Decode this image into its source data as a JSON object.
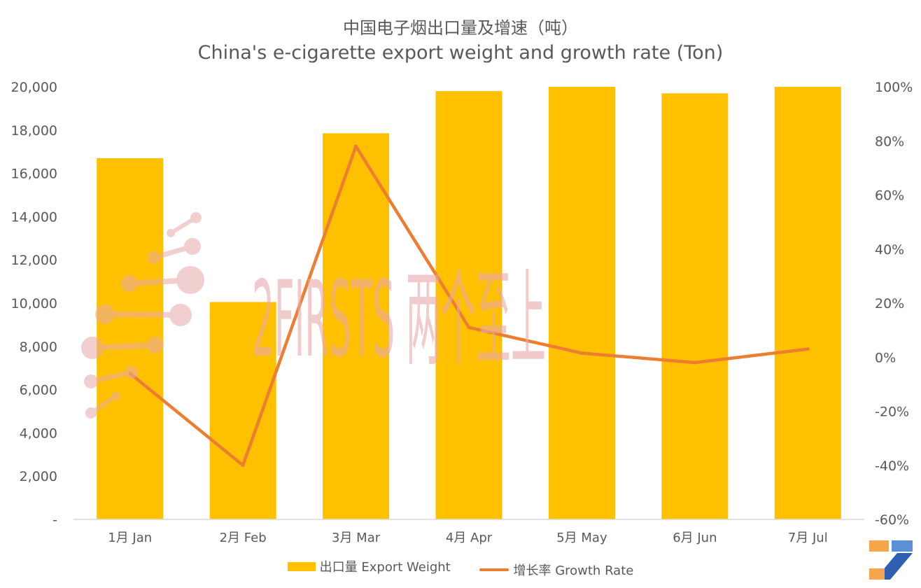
{
  "chart_data": {
    "type": "bar",
    "title": "中国电子烟出口量及增速（吨）",
    "subtitle": "China's e-cigarette export weight and growth rate (Ton)",
    "categories": [
      "1月 Jan",
      "2月 Feb",
      "3月 Mar",
      "4月 Apr",
      "5月 May",
      "6月 Jun",
      "7月 Jul"
    ],
    "series": [
      {
        "name": "出口量 Export Weight",
        "type": "bar",
        "axis": "left",
        "color": "#FFC000",
        "values": [
          16700,
          10050,
          17850,
          19800,
          20000,
          19700,
          20000
        ]
      },
      {
        "name": "增长率 Growth Rate",
        "type": "line",
        "axis": "right",
        "color": "#ED7D31",
        "values": [
          -6,
          -40,
          78,
          11,
          1.5,
          -2,
          3
        ]
      }
    ],
    "y_left": {
      "min": 0,
      "max": 20000,
      "step": 2000,
      "tick_labels": [
        "-",
        "2,000",
        "4,000",
        "6,000",
        "8,000",
        "10,000",
        "12,000",
        "14,000",
        "16,000",
        "18,000",
        "20,000"
      ]
    },
    "y_right": {
      "min": -60,
      "max": 100,
      "step": 20,
      "tick_labels": [
        "-60%",
        "-40%",
        "-20%",
        "0%",
        "20%",
        "40%",
        "60%",
        "80%",
        "100%"
      ]
    },
    "grid": false,
    "legend_position": "bottom"
  },
  "watermark": {
    "text": "2FIRSTS 两个至上"
  }
}
